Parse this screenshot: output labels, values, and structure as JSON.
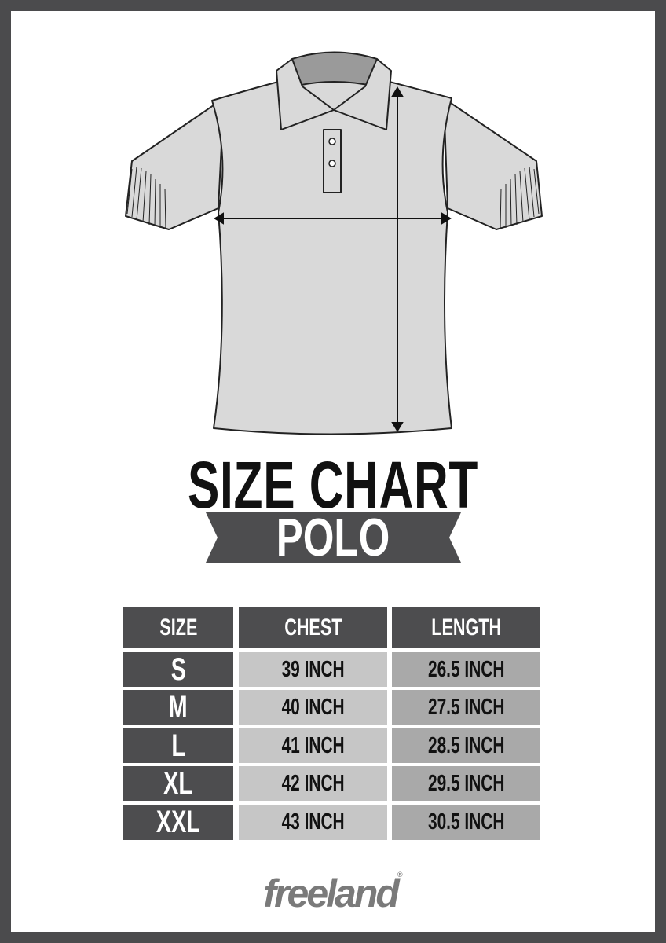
{
  "title": "SIZE CHART",
  "subtitle": "POLO",
  "brand": "freeland",
  "brand_mark": "®",
  "colors": {
    "frame": "#4b4b4d",
    "header": "#4d4d4f",
    "chest_cell": "#c6c6c6",
    "length_cell": "#a9a9a9",
    "shirt": "#d9d9d9"
  },
  "table": {
    "headers": [
      "SIZE",
      "CHEST",
      "LENGTH"
    ],
    "rows": [
      {
        "size": "S",
        "chest": "39 INCH",
        "length": "26.5 INCH"
      },
      {
        "size": "M",
        "chest": "40 INCH",
        "length": "27.5 INCH"
      },
      {
        "size": "L",
        "chest": "41 INCH",
        "length": "28.5 INCH"
      },
      {
        "size": "XL",
        "chest": "42 INCH",
        "length": "29.5 INCH"
      },
      {
        "size": "XXL",
        "chest": "43 INCH",
        "length": "30.5 INCH"
      }
    ]
  }
}
